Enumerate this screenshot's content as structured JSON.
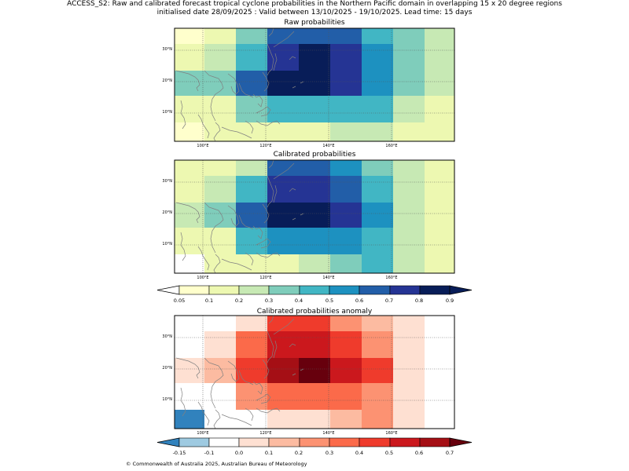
{
  "header": {
    "line1": "ACCESS_S2: Raw and calibrated forecast tropical cyclone probabilities in the Northern Pacific domain in overlapping 15 x 20 degree regions",
    "line2": "initialised date 28/09/2025 :  Valid between 13/10/2025 - 19/10/2025. Lead time: 15 days"
  },
  "map_axes": {
    "lon_labels": [
      "100°E",
      "120°E",
      "140°E",
      "160°E"
    ],
    "lat_labels": [
      "30°N",
      "20°N",
      "10°N"
    ]
  },
  "panels": [
    {
      "title": "Raw probabilities",
      "colorscale": "prob",
      "grid": [
        [
          "#ffffcc",
          "#edf8b1",
          "#7fcdbb",
          "#225ea8",
          "#225ea8",
          "#225ea8",
          "#41b6c4",
          "#7fcdbb",
          "#c7e9b4"
        ],
        [
          "#edf8b1",
          "#c7e9b4",
          "#41b6c4",
          "#253494",
          "#081d58",
          "#253494",
          "#1d91c0",
          "#7fcdbb",
          "#c7e9b4"
        ],
        [
          "#7fcdbb",
          "#7fcdbb",
          "#225ea8",
          "#081d58",
          "#081d58",
          "#253494",
          "#1d91c0",
          "#7fcdbb",
          "#c7e9b4"
        ],
        [
          "#edf8b1",
          "#edf8b1",
          "#7fcdbb",
          "#41b6c4",
          "#41b6c4",
          "#41b6c4",
          "#41b6c4",
          "#c7e9b4",
          "#edf8b1"
        ],
        [
          "#ffffcc",
          "#edf8b1",
          "#edf8b1",
          "#edf8b1",
          "#edf8b1",
          "#c7e9b4",
          "#c7e9b4",
          "#edf8b1",
          "#edf8b1"
        ]
      ]
    },
    {
      "title": "Calibrated probabilities",
      "colorscale": "prob",
      "grid": [
        [
          "#edf8b1",
          "#edf8b1",
          "#c7e9b4",
          "#225ea8",
          "#225ea8",
          "#1d91c0",
          "#7fcdbb",
          "#c7e9b4",
          "#edf8b1"
        ],
        [
          "#edf8b1",
          "#c7e9b4",
          "#41b6c4",
          "#253494",
          "#253494",
          "#225ea8",
          "#41b6c4",
          "#c7e9b4",
          "#edf8b1"
        ],
        [
          "#c7e9b4",
          "#7fcdbb",
          "#225ea8",
          "#081d58",
          "#081d58",
          "#253494",
          "#1d91c0",
          "#c7e9b4",
          "#edf8b1"
        ],
        [
          "#edf8b1",
          "#edf8b1",
          "#41b6c4",
          "#1d91c0",
          "#1d91c0",
          "#1d91c0",
          "#41b6c4",
          "#c7e9b4",
          "#edf8b1"
        ],
        [
          "#ffffff",
          "#edf8b1",
          "#edf8b1",
          "#edf8b1",
          "#c7e9b4",
          "#7fcdbb",
          "#41b6c4",
          "#c7e9b4",
          "#edf8b1"
        ]
      ]
    },
    {
      "title": "Calibrated probabilities anomaly",
      "colorscale": "anom",
      "grid": [
        [
          "#ffffff",
          "#ffffff",
          "#fee0d2",
          "#ef3b2c",
          "#ef3b2c",
          "#fc9272",
          "#fcbba1",
          "#fee0d2",
          "#ffffff"
        ],
        [
          "#ffffff",
          "#fee0d2",
          "#fb6a4a",
          "#cb181d",
          "#cb181d",
          "#ef3b2c",
          "#fc9272",
          "#fee0d2",
          "#ffffff"
        ],
        [
          "#fee0d2",
          "#fcbba1",
          "#ef3b2c",
          "#a50f15",
          "#67000d",
          "#cb181d",
          "#ef3b2c",
          "#fee0d2",
          "#ffffff"
        ],
        [
          "#ffffff",
          "#ffffff",
          "#fc9272",
          "#fb6a4a",
          "#fb6a4a",
          "#fb6a4a",
          "#fc9272",
          "#fee0d2",
          "#ffffff"
        ],
        [
          "#3182bd",
          "#ffffff",
          "#ffffff",
          "#fee0d2",
          "#fee0d2",
          "#fcbba1",
          "#fc9272",
          "#fee0d2",
          "#ffffff"
        ]
      ]
    }
  ],
  "colorbars": [
    {
      "name": "prob",
      "ticks": [
        "0.05",
        "0.1",
        "0.2",
        "0.3",
        "0.4",
        "0.5",
        "0.6",
        "0.7",
        "0.8",
        "0.9"
      ],
      "under": "#ffffff",
      "over": "#081d58",
      "colors": [
        "#ffffcc",
        "#edf8b1",
        "#c7e9b4",
        "#7fcdbb",
        "#41b6c4",
        "#1d91c0",
        "#225ea8",
        "#253494",
        "#081d58"
      ]
    },
    {
      "name": "anom",
      "ticks": [
        "-0.15",
        "-0.1",
        "0.0",
        "0.1",
        "0.2",
        "0.3",
        "0.4",
        "0.5",
        "0.6",
        "0.7"
      ],
      "under": "#3182bd",
      "over": "#67000d",
      "colors": [
        "#9ecae1",
        "#ffffff",
        "#fee0d2",
        "#fcbba1",
        "#fc9272",
        "#fb6a4a",
        "#ef3b2c",
        "#cb181d",
        "#a50f15"
      ]
    }
  ],
  "footer": {
    "copyright": "© Commonwealth of Australia 2025, Australian Bureau of Meteorology"
  }
}
